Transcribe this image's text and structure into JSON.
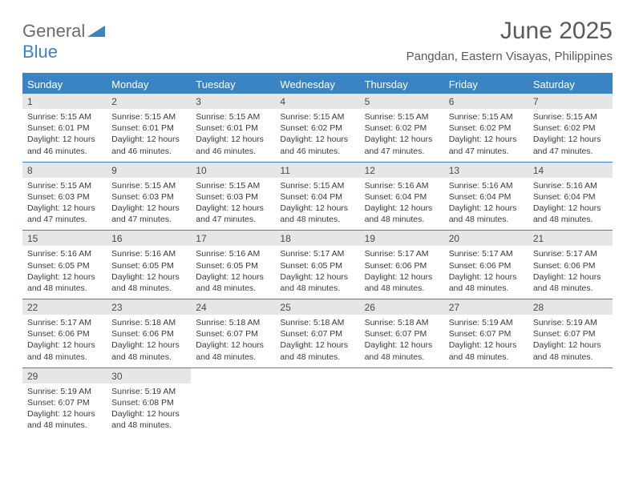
{
  "logo": {
    "part1": "General",
    "part2": "Blue"
  },
  "title": "June 2025",
  "location": "Pangdan, Eastern Visayas, Philippines",
  "header_bg": "#3b84c4",
  "daynum_bg": "#e6e6e6",
  "text_color": "#3a3a3a",
  "day_names": [
    "Sunday",
    "Monday",
    "Tuesday",
    "Wednesday",
    "Thursday",
    "Friday",
    "Saturday"
  ],
  "weeks": [
    [
      {
        "n": "1",
        "sr": "5:15 AM",
        "ss": "6:01 PM",
        "dl": "12 hours and 46 minutes."
      },
      {
        "n": "2",
        "sr": "5:15 AM",
        "ss": "6:01 PM",
        "dl": "12 hours and 46 minutes."
      },
      {
        "n": "3",
        "sr": "5:15 AM",
        "ss": "6:01 PM",
        "dl": "12 hours and 46 minutes."
      },
      {
        "n": "4",
        "sr": "5:15 AM",
        "ss": "6:02 PM",
        "dl": "12 hours and 46 minutes."
      },
      {
        "n": "5",
        "sr": "5:15 AM",
        "ss": "6:02 PM",
        "dl": "12 hours and 47 minutes."
      },
      {
        "n": "6",
        "sr": "5:15 AM",
        "ss": "6:02 PM",
        "dl": "12 hours and 47 minutes."
      },
      {
        "n": "7",
        "sr": "5:15 AM",
        "ss": "6:02 PM",
        "dl": "12 hours and 47 minutes."
      }
    ],
    [
      {
        "n": "8",
        "sr": "5:15 AM",
        "ss": "6:03 PM",
        "dl": "12 hours and 47 minutes."
      },
      {
        "n": "9",
        "sr": "5:15 AM",
        "ss": "6:03 PM",
        "dl": "12 hours and 47 minutes."
      },
      {
        "n": "10",
        "sr": "5:15 AM",
        "ss": "6:03 PM",
        "dl": "12 hours and 47 minutes."
      },
      {
        "n": "11",
        "sr": "5:15 AM",
        "ss": "6:04 PM",
        "dl": "12 hours and 48 minutes."
      },
      {
        "n": "12",
        "sr": "5:16 AM",
        "ss": "6:04 PM",
        "dl": "12 hours and 48 minutes."
      },
      {
        "n": "13",
        "sr": "5:16 AM",
        "ss": "6:04 PM",
        "dl": "12 hours and 48 minutes."
      },
      {
        "n": "14",
        "sr": "5:16 AM",
        "ss": "6:04 PM",
        "dl": "12 hours and 48 minutes."
      }
    ],
    [
      {
        "n": "15",
        "sr": "5:16 AM",
        "ss": "6:05 PM",
        "dl": "12 hours and 48 minutes."
      },
      {
        "n": "16",
        "sr": "5:16 AM",
        "ss": "6:05 PM",
        "dl": "12 hours and 48 minutes."
      },
      {
        "n": "17",
        "sr": "5:16 AM",
        "ss": "6:05 PM",
        "dl": "12 hours and 48 minutes."
      },
      {
        "n": "18",
        "sr": "5:17 AM",
        "ss": "6:05 PM",
        "dl": "12 hours and 48 minutes."
      },
      {
        "n": "19",
        "sr": "5:17 AM",
        "ss": "6:06 PM",
        "dl": "12 hours and 48 minutes."
      },
      {
        "n": "20",
        "sr": "5:17 AM",
        "ss": "6:06 PM",
        "dl": "12 hours and 48 minutes."
      },
      {
        "n": "21",
        "sr": "5:17 AM",
        "ss": "6:06 PM",
        "dl": "12 hours and 48 minutes."
      }
    ],
    [
      {
        "n": "22",
        "sr": "5:17 AM",
        "ss": "6:06 PM",
        "dl": "12 hours and 48 minutes."
      },
      {
        "n": "23",
        "sr": "5:18 AM",
        "ss": "6:06 PM",
        "dl": "12 hours and 48 minutes."
      },
      {
        "n": "24",
        "sr": "5:18 AM",
        "ss": "6:07 PM",
        "dl": "12 hours and 48 minutes."
      },
      {
        "n": "25",
        "sr": "5:18 AM",
        "ss": "6:07 PM",
        "dl": "12 hours and 48 minutes."
      },
      {
        "n": "26",
        "sr": "5:18 AM",
        "ss": "6:07 PM",
        "dl": "12 hours and 48 minutes."
      },
      {
        "n": "27",
        "sr": "5:19 AM",
        "ss": "6:07 PM",
        "dl": "12 hours and 48 minutes."
      },
      {
        "n": "28",
        "sr": "5:19 AM",
        "ss": "6:07 PM",
        "dl": "12 hours and 48 minutes."
      }
    ],
    [
      {
        "n": "29",
        "sr": "5:19 AM",
        "ss": "6:07 PM",
        "dl": "12 hours and 48 minutes."
      },
      {
        "n": "30",
        "sr": "5:19 AM",
        "ss": "6:08 PM",
        "dl": "12 hours and 48 minutes."
      },
      null,
      null,
      null,
      null,
      null
    ]
  ],
  "labels": {
    "sunrise": "Sunrise:",
    "sunset": "Sunset:",
    "daylight": "Daylight:"
  }
}
